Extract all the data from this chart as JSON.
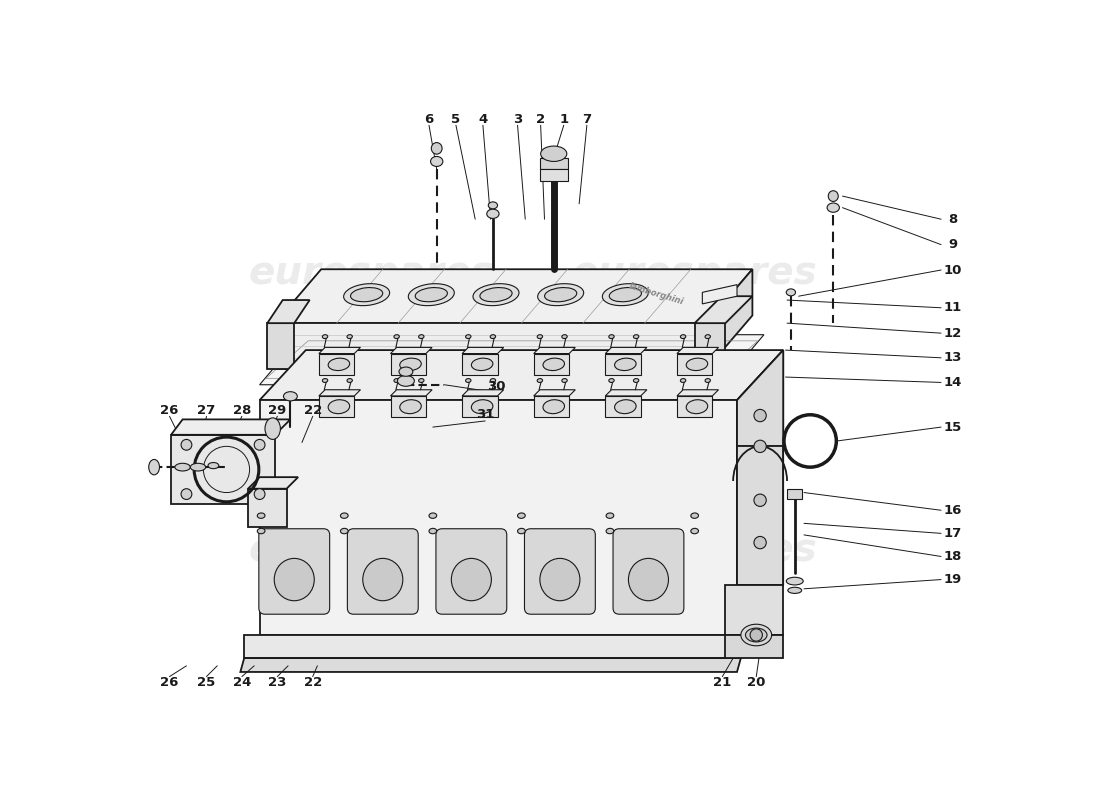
{
  "bg": "#ffffff",
  "lc": "#1a1a1a",
  "fc_light": "#f4f4f4",
  "fc_mid": "#e8e8e8",
  "fc_dark": "#d8d8d8",
  "wm_color": "#cccccc",
  "wm_alpha": 0.35,
  "lw_main": 1.3,
  "lw_thin": 0.8,
  "lw_thick": 2.0,
  "iso_sx": 0.55,
  "iso_sy": 0.28,
  "top_labels": [
    [
      "6",
      375,
      30
    ],
    [
      "5",
      410,
      30
    ],
    [
      "4",
      445,
      30
    ],
    [
      "3",
      490,
      30
    ],
    [
      "2",
      520,
      30
    ],
    [
      "1",
      550,
      30
    ],
    [
      "7",
      580,
      30
    ]
  ],
  "right_labels": [
    [
      "8",
      1020,
      168
    ],
    [
      "9",
      1020,
      200
    ],
    [
      "10",
      1020,
      232
    ],
    [
      "11",
      1020,
      278
    ],
    [
      "12",
      1020,
      310
    ],
    [
      "13",
      1020,
      342
    ],
    [
      "14",
      1020,
      374
    ],
    [
      "15",
      1020,
      430
    ],
    [
      "16",
      1020,
      540
    ],
    [
      "17",
      1020,
      572
    ],
    [
      "18",
      1020,
      604
    ],
    [
      "19",
      1020,
      636
    ]
  ],
  "left_labels": [
    [
      "26",
      38,
      420
    ],
    [
      "27",
      90,
      420
    ],
    [
      "28",
      138,
      420
    ],
    [
      "29",
      185,
      420
    ],
    [
      "22",
      232,
      420
    ]
  ],
  "mid_labels": [
    [
      "30",
      460,
      382
    ],
    [
      "31",
      440,
      418
    ]
  ],
  "bottom_labels": [
    [
      "26",
      38,
      752
    ],
    [
      "25",
      88,
      752
    ],
    [
      "24",
      136,
      752
    ],
    [
      "23",
      184,
      752
    ],
    [
      "22",
      232,
      752
    ],
    [
      "21",
      756,
      752
    ],
    [
      "20",
      800,
      752
    ]
  ]
}
